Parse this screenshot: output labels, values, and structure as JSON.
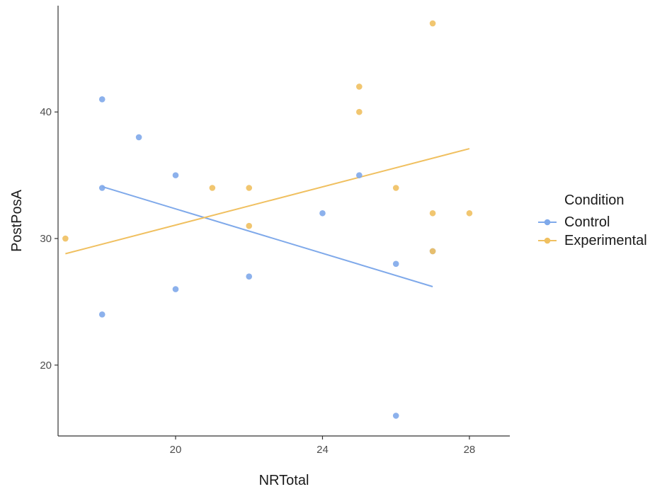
{
  "chart_data": {
    "type": "scatter",
    "xlabel": "NRTotal",
    "ylabel": "PostPosA",
    "xlim": [
      16.8,
      29.1
    ],
    "ylim": [
      14.4,
      48.4
    ],
    "x_ticks": [
      20,
      24,
      28
    ],
    "y_ticks": [
      20,
      30,
      40
    ],
    "x_tick_labels": [
      "20",
      "24",
      "28"
    ],
    "y_tick_labels": [
      "20",
      "30",
      "40"
    ],
    "grid": false,
    "legend": {
      "title": "Condition",
      "position": "right"
    },
    "series": [
      {
        "name": "Control",
        "color": "#7fa9ea",
        "points": [
          [
            18,
            41
          ],
          [
            18,
            34
          ],
          [
            18,
            24
          ],
          [
            19,
            38
          ],
          [
            20,
            35
          ],
          [
            20,
            26
          ],
          [
            22,
            27
          ],
          [
            24,
            32
          ],
          [
            25,
            35
          ],
          [
            26,
            28
          ],
          [
            26,
            16
          ],
          [
            27,
            29
          ]
        ],
        "fit_line": [
          [
            18,
            34.1
          ],
          [
            27,
            26.2
          ]
        ]
      },
      {
        "name": "Experimental",
        "color": "#f0c060",
        "points": [
          [
            17,
            30
          ],
          [
            21,
            34
          ],
          [
            22,
            34
          ],
          [
            22,
            31
          ],
          [
            25,
            42
          ],
          [
            25,
            40
          ],
          [
            26,
            34
          ],
          [
            27,
            47
          ],
          [
            27,
            32
          ],
          [
            27,
            29
          ],
          [
            28,
            32
          ]
        ],
        "fit_line": [
          [
            17,
            28.8
          ],
          [
            28,
            37.1
          ]
        ]
      }
    ]
  }
}
